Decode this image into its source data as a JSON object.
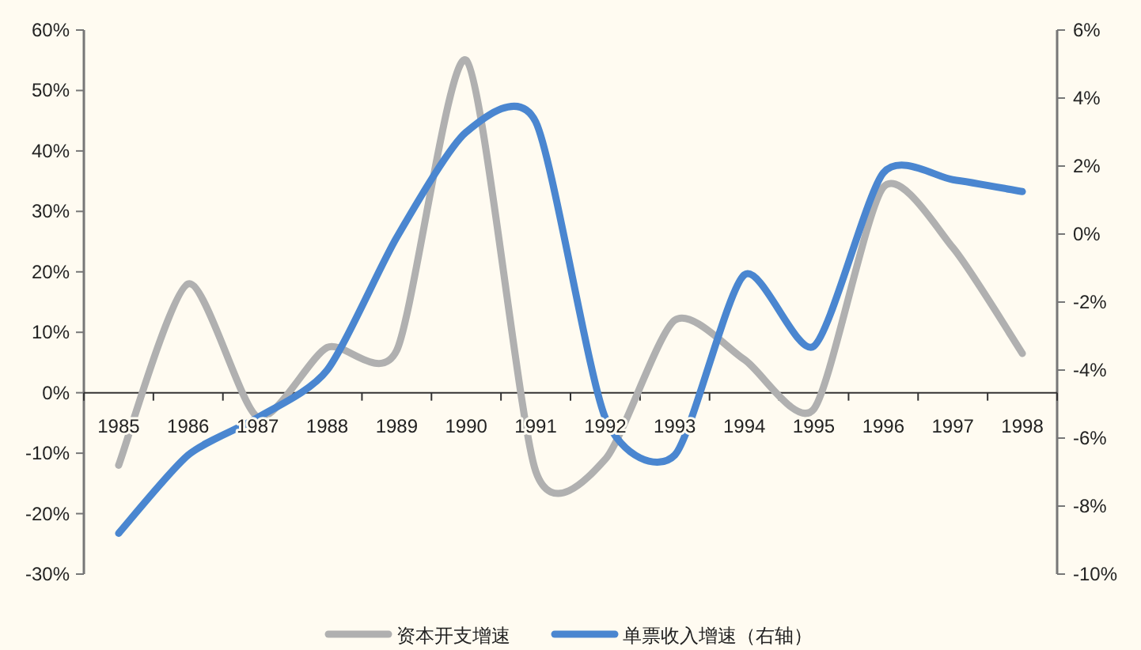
{
  "chart_data": {
    "type": "line",
    "categories": [
      "1985",
      "1986",
      "1987",
      "1988",
      "1989",
      "1990",
      "1991",
      "1992",
      "1993",
      "1994",
      "1995",
      "1996",
      "1997",
      "1998"
    ],
    "series": [
      {
        "name": "资本开支增速",
        "color": "#b0b0b0",
        "values": [
          -12,
          18,
          -4,
          7.5,
          7,
          55,
          -13,
          -11,
          12,
          5.5,
          -2.7,
          34,
          24,
          6.5
        ]
      },
      {
        "name": "单票收入增速（右轴）",
        "color": "#4a86d0",
        "axis": "y2",
        "values": [
          -8.8,
          -6.5,
          -5.4,
          -4,
          -0.1,
          3.0,
          3.3,
          -5.4,
          -6.5,
          -1.2,
          -3.3,
          1.8,
          1.6,
          1.25
        ]
      }
    ],
    "ylim": [
      -30,
      60
    ],
    "yticks": [
      {
        "value": -30,
        "label": "-30%"
      },
      {
        "value": -20,
        "label": "-20%"
      },
      {
        "value": -10,
        "label": "-10%"
      },
      {
        "value": 0,
        "label": "0%"
      },
      {
        "value": 10,
        "label": "10%"
      },
      {
        "value": 20,
        "label": "20%"
      },
      {
        "value": 30,
        "label": "30%"
      },
      {
        "value": 40,
        "label": "40%"
      },
      {
        "value": 50,
        "label": "50%"
      },
      {
        "value": 60,
        "label": "60%"
      }
    ],
    "y2lim": [
      -10,
      6
    ],
    "y2ticks": [
      {
        "value": -10,
        "label": "-10%"
      },
      {
        "value": -8,
        "label": "-8%"
      },
      {
        "value": -6,
        "label": "-6%"
      },
      {
        "value": -4,
        "label": "-4%"
      },
      {
        "value": -2,
        "label": "-2%"
      },
      {
        "value": 0,
        "label": "0%"
      },
      {
        "value": 2,
        "label": "2%"
      },
      {
        "value": 4,
        "label": "4%"
      },
      {
        "value": 6,
        "label": "6%"
      }
    ],
    "legend": "bottom",
    "grid": false,
    "marker": "none",
    "line_style": "solid"
  }
}
